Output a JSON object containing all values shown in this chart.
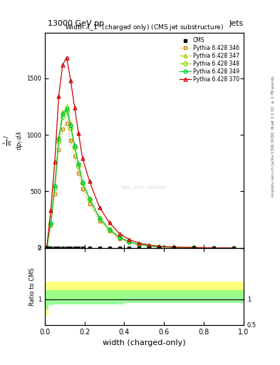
{
  "title_top": "13000 GeV pp",
  "title_right": "Jets",
  "plot_title": "Width $\\lambda$_1$^1$ (charged only) (CMS jet substructure)",
  "xlabel": "width (charged-only)",
  "ylabel_main_lines": [
    "$\\frac{1}{\\mathrm{d}N}$ /",
    "$\\mathrm{d}p_{\\mathrm{T}}$ $\\mathrm{d}\\lambda$"
  ],
  "ylabel_ratio": "Ratio to CMS",
  "right_label_top": "Rivet 3.1.10; $\\geq$ 2.7M events",
  "right_label_bottom": "mcplots.cern.ch [arXiv:1306.3436]",
  "watermark": "CMS_2021_I1920187",
  "bins": [
    0.0,
    0.02,
    0.04,
    0.06,
    0.08,
    0.1,
    0.12,
    0.14,
    0.16,
    0.18,
    0.2,
    0.25,
    0.3,
    0.35,
    0.4,
    0.45,
    0.5,
    0.55,
    0.6,
    0.7,
    0.8,
    0.9,
    1.0
  ],
  "cms_values": [
    1.0,
    2.0,
    2.0,
    2.0,
    2.0,
    2.0,
    2.0,
    2.0,
    2.0,
    2.0,
    2.0,
    1.0,
    1.0,
    1.0,
    1.0,
    1.0,
    1.0,
    1.0,
    1.0,
    0.5,
    0.5,
    0.5
  ],
  "series": [
    {
      "label": "Pythia 6.428 346",
      "color": "#cc8800",
      "marker": "s",
      "linestyle": ":",
      "fillstyle": "none",
      "values": [
        5,
        200,
        480,
        870,
        1050,
        1100,
        950,
        810,
        660,
        520,
        390,
        240,
        148,
        84,
        48,
        28,
        17,
        10,
        6,
        2.5,
        1.0,
        0.3
      ]
    },
    {
      "label": "Pythia 6.428 347",
      "color": "#aacc00",
      "marker": "^",
      "linestyle": "-.",
      "fillstyle": "none",
      "values": [
        5,
        230,
        560,
        980,
        1200,
        1250,
        1100,
        910,
        745,
        585,
        440,
        270,
        168,
        96,
        55,
        33,
        19,
        11,
        7,
        3.0,
        1.1,
        0.3
      ]
    },
    {
      "label": "Pythia 6.428 348",
      "color": "#88dd00",
      "marker": "D",
      "linestyle": "--",
      "fillstyle": "none",
      "values": [
        5,
        215,
        530,
        940,
        1160,
        1210,
        1060,
        890,
        725,
        570,
        425,
        260,
        162,
        93,
        53,
        31,
        18,
        11,
        6.5,
        2.8,
        1.0,
        0.3
      ]
    },
    {
      "label": "Pythia 6.428 349",
      "color": "#00cc44",
      "marker": "o",
      "linestyle": "-",
      "fillstyle": "none",
      "values": [
        5,
        220,
        545,
        960,
        1180,
        1230,
        1080,
        900,
        740,
        580,
        435,
        265,
        165,
        95,
        54,
        32,
        19,
        11,
        6.8,
        2.9,
        1.05,
        0.3
      ]
    },
    {
      "label": "Pythia 6.428 370",
      "color": "#cc0000",
      "marker": "^",
      "linestyle": "-",
      "fillstyle": "none",
      "values": [
        8,
        330,
        760,
        1340,
        1620,
        1680,
        1480,
        1240,
        1010,
        790,
        590,
        360,
        224,
        128,
        74,
        44,
        26,
        15,
        9,
        3.8,
        1.4,
        0.4
      ]
    }
  ],
  "ratio_bands": [
    {
      "color": "#ffff66",
      "alpha": 0.85,
      "ylo": [
        0.68,
        0.95,
        1.0,
        1.0,
        1.0,
        1.0,
        1.0,
        1.0,
        1.0,
        1.0,
        1.0,
        1.0,
        1.0,
        1.0,
        1.05,
        1.05,
        1.05,
        1.05,
        1.05,
        1.05,
        1.05,
        1.05
      ],
      "yhi": [
        1.35,
        1.35,
        1.35,
        1.35,
        1.35,
        1.35,
        1.35,
        1.35,
        1.35,
        1.35,
        1.35,
        1.35,
        1.35,
        1.35,
        1.35,
        1.35,
        1.35,
        1.35,
        1.35,
        1.35,
        1.35,
        1.35
      ]
    },
    {
      "color": "#88ff88",
      "alpha": 0.85,
      "ylo": [
        0.8,
        0.88,
        0.9,
        0.9,
        0.9,
        0.9,
        0.9,
        0.9,
        0.9,
        0.9,
        0.9,
        0.9,
        0.9,
        0.9,
        0.93,
        0.93,
        0.93,
        0.93,
        0.93,
        0.93,
        0.93,
        0.93
      ],
      "yhi": [
        1.18,
        1.18,
        1.18,
        1.18,
        1.18,
        1.18,
        1.18,
        1.18,
        1.18,
        1.18,
        1.18,
        1.18,
        1.18,
        1.18,
        1.18,
        1.18,
        1.18,
        1.18,
        1.18,
        1.18,
        1.18,
        1.18
      ]
    }
  ],
  "xlim": [
    0,
    1.0
  ],
  "ylim_main": [
    0,
    1900
  ],
  "yticks_main": [
    0,
    500,
    1000,
    1500
  ],
  "ylim_ratio": [
    0.5,
    2.0
  ],
  "yticks_ratio_left": [
    1.0,
    2.0
  ],
  "yticks_ratio_right": [
    0.5,
    1.0
  ],
  "background_color": "#ffffff"
}
